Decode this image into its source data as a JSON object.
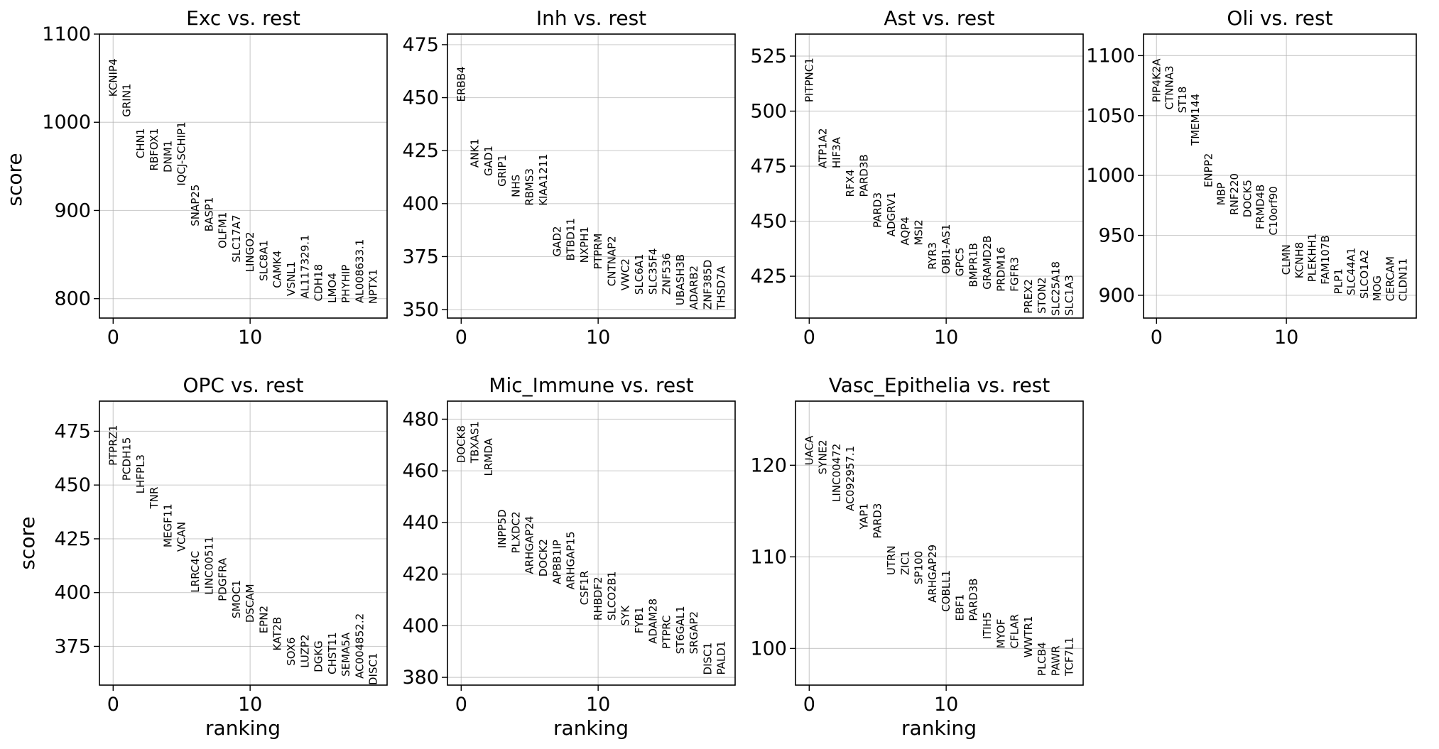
{
  "figure": {
    "xlabel": "ranking",
    "ylabel": "score"
  },
  "chart_data": [
    {
      "type": "scatter",
      "title": "Exc vs. rest",
      "xlabel": "",
      "ylabel": "score",
      "xlim": [
        -1,
        20
      ],
      "ylim": [
        778,
        1100
      ],
      "xticks": [
        0,
        10
      ],
      "yticks": [
        800,
        900,
        1000,
        1100
      ],
      "genes": [
        "KCNIP4",
        "GRIN1",
        "CHN1",
        "RBFOX1",
        "DNM1",
        "IQCJ-SCHIP1",
        "SNAP25",
        "BASP1",
        "OLFM1",
        "SLC17A7",
        "LINGO2",
        "SLC8A1",
        "CAMK4",
        "VSNL1",
        "AL117329.1",
        "CDH18",
        "LMO4",
        "PHYHIP",
        "AL008633.1",
        "NPTX1"
      ],
      "scores": [
        1029,
        1006,
        959,
        945,
        943,
        928,
        882,
        876,
        857,
        841,
        830,
        820,
        812,
        803,
        800,
        797,
        795,
        795,
        795,
        794
      ],
      "grid": true
    },
    {
      "type": "scatter",
      "title": "Inh vs. rest",
      "xlabel": "",
      "ylabel": "",
      "xlim": [
        -1,
        20
      ],
      "ylim": [
        346,
        480
      ],
      "xticks": [
        0,
        10
      ],
      "yticks": [
        350,
        375,
        400,
        425,
        450,
        475
      ],
      "genes": [
        "ERBB4",
        "ANK1",
        "GAD1",
        "GRIP1",
        "NHS",
        "RBMS3",
        "KIAA1211",
        "GAD2",
        "BTBD11",
        "NXPH1",
        "PTPRM",
        "CNTNAP2",
        "VWC2",
        "SLC6A1",
        "SLC35F4",
        "ZNF536",
        "UBASH3B",
        "ADARB2",
        "ZNF385D",
        "THSD7A"
      ],
      "scores": [
        448,
        417,
        413,
        408,
        403,
        399,
        399,
        375,
        373,
        372,
        369,
        361,
        359,
        357,
        357,
        357,
        352,
        350,
        350,
        350
      ],
      "grid": true
    },
    {
      "type": "scatter",
      "title": "Ast vs. rest",
      "xlabel": "",
      "ylabel": "",
      "xlim": [
        -1,
        20
      ],
      "ylim": [
        406,
        535
      ],
      "xticks": [
        0,
        10
      ],
      "yticks": [
        425,
        450,
        475,
        500,
        525
      ],
      "genes": [
        "PITPNC1",
        "ATP1A2",
        "HIF3A",
        "RFX4",
        "PARD3B",
        "PARD3",
        "ADGRV1",
        "AQP4",
        "MSI2",
        "RYR3",
        "OBI1-AS1",
        "GPC5",
        "BMPR1B",
        "GRAMD2B",
        "PRDM16",
        "FGFR3",
        "PREX2",
        "STON2",
        "SLC25A18",
        "SLC1A3"
      ],
      "scores": [
        504,
        474,
        474,
        461,
        461,
        447,
        443,
        439,
        439,
        428,
        426,
        425,
        420,
        419,
        418,
        418,
        408,
        408,
        407,
        407
      ],
      "grid": true
    },
    {
      "type": "scatter",
      "title": "Oli vs. rest",
      "xlabel": "",
      "ylabel": "",
      "xlim": [
        -1,
        20
      ],
      "ylim": [
        881,
        1118
      ],
      "xticks": [
        0,
        10
      ],
      "yticks": [
        900,
        950,
        1000,
        1050,
        1100
      ],
      "genes": [
        "PIP4K2A",
        "CTNNA3",
        "ST18",
        "TMEM144",
        "ENPP2",
        "MBP",
        "RNF220",
        "DOCK5",
        "FRMD4B",
        "C10orf90",
        "CLMN",
        "KCNH8",
        "PLEKHH1",
        "FAM107B",
        "PLP1",
        "SLC44A1",
        "SLCO1A2",
        "MOG",
        "CERCAM",
        "CLDN11"
      ],
      "scores": [
        1061,
        1055,
        1052,
        1025,
        990,
        975,
        967,
        965,
        955,
        950,
        917,
        914,
        911,
        909,
        901,
        900,
        897,
        895,
        895,
        895
      ],
      "grid": true
    },
    {
      "type": "scatter",
      "title": "OPC vs. rest",
      "xlabel": "ranking",
      "ylabel": "score",
      "xlim": [
        -1,
        20
      ],
      "ylim": [
        357,
        489
      ],
      "xticks": [
        0,
        10
      ],
      "yticks": [
        375,
        400,
        425,
        450,
        475
      ],
      "genes": [
        "PTPRZ1",
        "PCDH15",
        "LHFPL3",
        "TNR",
        "MEGF11",
        "VCAN",
        "LRRC4C",
        "LINC00511",
        "PDGFRA",
        "SMOC1",
        "DSCAM",
        "EPN2",
        "KAT2B",
        "SOX6",
        "LUZP2",
        "DGKG",
        "CHST11",
        "SEMA5A",
        "AC004852.2",
        "DISC1"
      ],
      "scores": [
        459,
        452,
        446,
        439,
        421,
        419,
        400,
        399,
        396,
        388,
        386,
        381,
        373,
        366,
        365,
        363,
        362,
        361,
        360,
        357
      ],
      "grid": true
    },
    {
      "type": "scatter",
      "title": "Mic_Immune vs. rest",
      "xlabel": "ranking",
      "ylabel": "",
      "xlim": [
        -1,
        20
      ],
      "ylim": [
        377,
        487
      ],
      "xticks": [
        0,
        10
      ],
      "yticks": [
        380,
        400,
        420,
        440,
        460,
        480
      ],
      "genes": [
        "DOCK8",
        "TBXAS1",
        "LRMDA",
        "INPP5D",
        "PLXDC2",
        "ARHGAP24",
        "DOCK2",
        "APBB1IP",
        "ARHGAP15",
        "CSF1R",
        "RHBDF2",
        "SLCO2B1",
        "SYK",
        "FYB1",
        "ADAM28",
        "PTPRC",
        "ST6GAL1",
        "SRGAP2",
        "DISC1",
        "PALD1"
      ],
      "scores": [
        463,
        463,
        458,
        430,
        428,
        420,
        419,
        416,
        414,
        408,
        402,
        402,
        400,
        397,
        393,
        391,
        389,
        389,
        381,
        381
      ],
      "grid": true
    },
    {
      "type": "scatter",
      "title": "Vasc_Epithelia vs. rest",
      "xlabel": "ranking",
      "ylabel": "",
      "xlim": [
        -1,
        20
      ],
      "ylim": [
        96,
        127
      ],
      "xticks": [
        0,
        10
      ],
      "yticks": [
        100,
        110,
        120
      ],
      "genes": [
        "UACA",
        "SYNE2",
        "LINC00472",
        "AC092957.1",
        "YAP1",
        "PARD3",
        "UTRN",
        "ZIC1",
        "SP100",
        "ARHGAP29",
        "COBLL1",
        "EBF1",
        "PARD3B",
        "ITIH5",
        "MYOF",
        "CFLAR",
        "WWTR1",
        "PLCB4",
        "PAWR",
        "TCF7L1"
      ],
      "scores": [
        120,
        119,
        116,
        115,
        113,
        112,
        108,
        108,
        107,
        105,
        104,
        103,
        103,
        101,
        100,
        100,
        99,
        97,
        97,
        97
      ],
      "grid": true
    }
  ]
}
